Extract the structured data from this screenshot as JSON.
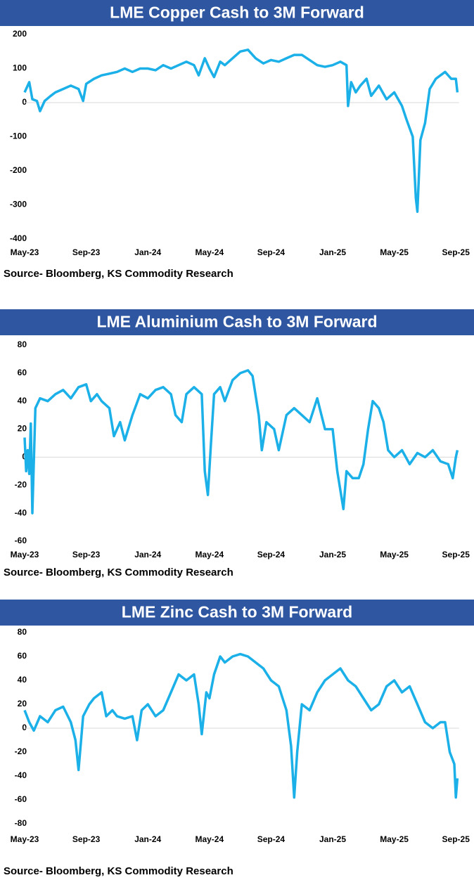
{
  "chart_data": [
    {
      "type": "line",
      "title": "LME Copper Cash to 3M Forward",
      "source": "Source- Bloomberg, KS Commodity Research",
      "xlim": [
        0,
        28.2
      ],
      "xticks": [
        {
          "value": 0,
          "label": "May-23"
        },
        {
          "value": 4,
          "label": "Sep-23"
        },
        {
          "value": 8,
          "label": "Jan-24"
        },
        {
          "value": 12,
          "label": "May-24"
        },
        {
          "value": 16,
          "label": "Sep-24"
        },
        {
          "value": 20,
          "label": "Jan-25"
        },
        {
          "value": 24,
          "label": "May-25"
        },
        {
          "value": 28,
          "label": "Sep-25"
        }
      ],
      "ylim": [
        -400,
        200
      ],
      "yticks": [
        -400,
        -300,
        -200,
        -100,
        0,
        100,
        200
      ],
      "series": [
        {
          "color": "#1bb0e8",
          "x": [
            0,
            0.3,
            0.5,
            0.8,
            1.0,
            1.3,
            1.7,
            2,
            2.5,
            3,
            3.5,
            3.8,
            4,
            4.5,
            5,
            5.5,
            6,
            6.5,
            7,
            7.5,
            8,
            8.5,
            9,
            9.5,
            10,
            10.5,
            11,
            11.3,
            11.7,
            12,
            12.3,
            12.7,
            13,
            13.5,
            14,
            14.5,
            15,
            15.5,
            16,
            16.5,
            17,
            17.5,
            18,
            18.5,
            19,
            19.5,
            20,
            20.5,
            20.9,
            21.0,
            21.2,
            21.5,
            21.8,
            22.2,
            22.5,
            23,
            23.5,
            24,
            24.5,
            24.8,
            25.2,
            25.4,
            25.5,
            25.7,
            26,
            26.3,
            26.7,
            27,
            27.3,
            27.7,
            28,
            28.1
          ],
          "values": [
            30,
            60,
            10,
            5,
            -25,
            5,
            20,
            30,
            40,
            50,
            40,
            5,
            55,
            70,
            80,
            85,
            90,
            100,
            90,
            100,
            100,
            95,
            110,
            100,
            110,
            120,
            110,
            80,
            130,
            100,
            75,
            120,
            110,
            130,
            150,
            155,
            130,
            115,
            125,
            120,
            130,
            140,
            140,
            125,
            110,
            105,
            110,
            120,
            110,
            -10,
            60,
            30,
            50,
            70,
            20,
            50,
            10,
            30,
            -10,
            -50,
            -100,
            -280,
            -320,
            -110,
            -60,
            40,
            70,
            80,
            90,
            70,
            70,
            30
          ]
        }
      ]
    },
    {
      "type": "line",
      "title": "LME Aluminium Cash to 3M Forward",
      "source": "Source- Bloomberg, KS Commodity Research",
      "xlim": [
        0,
        28.2
      ],
      "xticks": [
        {
          "value": 0,
          "label": "May-23"
        },
        {
          "value": 4,
          "label": "Sep-23"
        },
        {
          "value": 8,
          "label": "Jan-24"
        },
        {
          "value": 12,
          "label": "May-24"
        },
        {
          "value": 16,
          "label": "Sep-24"
        },
        {
          "value": 20,
          "label": "Jan-25"
        },
        {
          "value": 24,
          "label": "May-25"
        },
        {
          "value": 28,
          "label": "Sep-25"
        }
      ],
      "ylim": [
        -60,
        80
      ],
      "yticks": [
        -60,
        -40,
        -20,
        0,
        20,
        40,
        60,
        80
      ],
      "series": [
        {
          "color": "#1bb0e8",
          "x": [
            0,
            0.1,
            0.2,
            0.3,
            0.4,
            0.5,
            0.7,
            1,
            1.5,
            2,
            2.5,
            3,
            3.5,
            4,
            4.3,
            4.7,
            5,
            5.5,
            5.8,
            6.2,
            6.5,
            7,
            7.5,
            8,
            8.5,
            9,
            9.5,
            9.8,
            10.2,
            10.5,
            11,
            11.5,
            11.7,
            11.9,
            12.1,
            12.3,
            12.7,
            13,
            13.5,
            14,
            14.5,
            14.8,
            15.2,
            15.4,
            15.7,
            16.2,
            16.5,
            17,
            17.5,
            18,
            18.5,
            19,
            19.5,
            20,
            20.3,
            20.7,
            20.9,
            21.3,
            21.7,
            22,
            22.3,
            22.6,
            23,
            23.3,
            23.6,
            24,
            24.5,
            25,
            25.5,
            26,
            26.5,
            27,
            27.5,
            27.8,
            28,
            28.1
          ],
          "values": [
            14,
            -10,
            5,
            -12,
            24,
            -40,
            35,
            42,
            40,
            45,
            48,
            42,
            50,
            52,
            40,
            45,
            40,
            35,
            15,
            25,
            12,
            30,
            45,
            42,
            48,
            50,
            45,
            30,
            25,
            45,
            50,
            45,
            -10,
            -27,
            10,
            45,
            50,
            40,
            55,
            60,
            62,
            58,
            30,
            5,
            25,
            20,
            5,
            30,
            35,
            30,
            25,
            42,
            20,
            20,
            -10,
            -37,
            -10,
            -15,
            -15,
            -5,
            20,
            40,
            35,
            25,
            5,
            0,
            5,
            -5,
            3,
            0,
            5,
            -3,
            -5,
            -15,
            0,
            5
          ]
        }
      ]
    },
    {
      "type": "line",
      "title": "LME Zinc Cash to 3M Forward",
      "source": "Source- Bloomberg, KS Commodity Research",
      "xlim": [
        0,
        28.2
      ],
      "xticks": [
        {
          "value": 0,
          "label": "May-23"
        },
        {
          "value": 4,
          "label": "Sep-23"
        },
        {
          "value": 8,
          "label": "Jan-24"
        },
        {
          "value": 12,
          "label": "May-24"
        },
        {
          "value": 16,
          "label": "Sep-24"
        },
        {
          "value": 20,
          "label": "Jan-25"
        },
        {
          "value": 24,
          "label": "May-25"
        },
        {
          "value": 28,
          "label": "Sep-25"
        }
      ],
      "ylim": [
        -80,
        80
      ],
      "yticks": [
        -80,
        -60,
        -40,
        -20,
        0,
        20,
        40,
        60,
        80
      ],
      "series": [
        {
          "color": "#1bb0e8",
          "x": [
            0,
            0.3,
            0.6,
            1,
            1.5,
            2,
            2.5,
            3,
            3.3,
            3.5,
            3.8,
            4.2,
            4.5,
            5,
            5.3,
            5.7,
            6,
            6.5,
            7,
            7.3,
            7.6,
            8,
            8.5,
            9,
            9.5,
            10,
            10.5,
            11,
            11.3,
            11.5,
            11.8,
            12,
            12.3,
            12.7,
            13,
            13.5,
            14,
            14.5,
            15,
            15.5,
            16,
            16.5,
            17,
            17.3,
            17.5,
            17.7,
            18,
            18.5,
            19,
            19.5,
            20,
            20.5,
            21,
            21.5,
            22,
            22.5,
            23,
            23.5,
            24,
            24.5,
            25,
            25.5,
            26,
            26.5,
            27,
            27.3,
            27.6,
            27.9,
            28.0,
            28.1
          ],
          "values": [
            15,
            5,
            -2,
            10,
            5,
            15,
            18,
            5,
            -10,
            -35,
            10,
            20,
            25,
            30,
            10,
            15,
            10,
            8,
            10,
            -10,
            15,
            20,
            10,
            15,
            30,
            45,
            40,
            45,
            20,
            -5,
            30,
            25,
            45,
            60,
            55,
            60,
            62,
            60,
            55,
            50,
            40,
            35,
            15,
            -15,
            -58,
            -20,
            20,
            15,
            30,
            40,
            45,
            50,
            40,
            35,
            25,
            15,
            20,
            35,
            40,
            30,
            35,
            20,
            5,
            0,
            5,
            5,
            -20,
            -30,
            -58,
            -42
          ]
        }
      ]
    }
  ]
}
